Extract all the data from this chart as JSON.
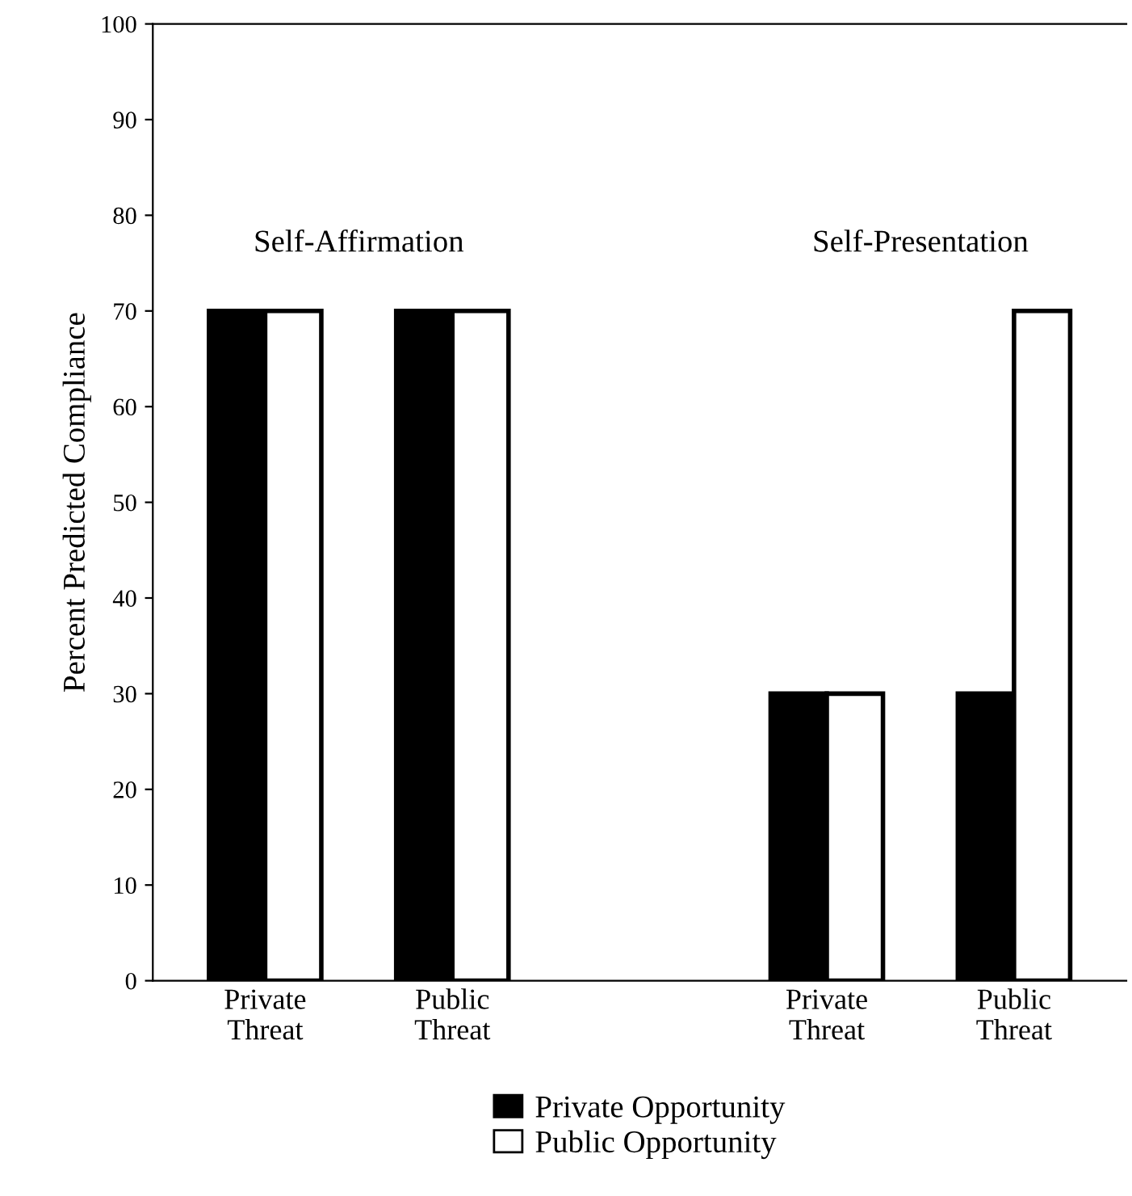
{
  "chart_data": {
    "type": "bar",
    "ylabel": "Percent Predicted Compliance",
    "categories": [
      "Private\nThreat",
      "Public\nThreat",
      null,
      "Private\nThreat",
      "Public\nThreat"
    ],
    "series": [
      {
        "name": "Private Opportunity",
        "color": "#000000",
        "values": [
          70,
          70,
          null,
          30,
          30
        ]
      },
      {
        "name": "Public Opportunity",
        "color": "#ffffff",
        "values": [
          70,
          70,
          null,
          30,
          70
        ]
      }
    ],
    "annotations": [
      "Self-Affirmation",
      "Self-Presentation"
    ],
    "ylim": [
      0,
      100
    ],
    "yticks": [
      0,
      10,
      20,
      30,
      40,
      50,
      60,
      70,
      80,
      90,
      100
    ],
    "grid": false,
    "legend": "bottom"
  }
}
